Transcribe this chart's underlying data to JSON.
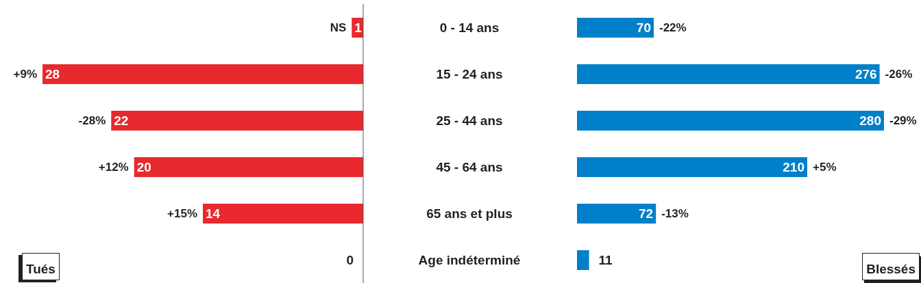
{
  "chart_data": [
    {
      "type": "bar",
      "orientation": "horizontal",
      "title": "Tués",
      "categories": [
        "0 - 14 ans",
        "15 - 24 ans",
        "25 - 44 ans",
        "45 - 64 ans",
        "65 ans et plus",
        "Age indéterminé"
      ],
      "values": [
        1,
        28,
        22,
        20,
        14,
        0
      ],
      "color": "#e8292e",
      "xlim": [
        28,
        0
      ],
      "data_labels": true,
      "tick_labels": "y",
      "annotations": [
        {
          "text": "NS",
          "x": 1,
          "y": "0 - 14 ans"
        },
        {
          "text": "+9%",
          "x": 28,
          "y": "15 - 24 ans"
        },
        {
          "text": "-28%",
          "x": 22,
          "y": "25 - 44 ans"
        },
        {
          "text": "+12%",
          "x": 20,
          "y": "45 - 64 ans"
        },
        {
          "text": "+15%",
          "x": 14,
          "y": "65 ans et plus"
        }
      ]
    },
    {
      "type": "bar",
      "orientation": "horizontal",
      "title": "Blessés",
      "categories": [
        "0 - 14 ans",
        "15 - 24 ans",
        "25 - 44 ans",
        "45 - 64 ans",
        "65 ans et plus",
        "Age indéterminé"
      ],
      "values": [
        70,
        276,
        280,
        210,
        72,
        11
      ],
      "color": "#0080c8",
      "xlim": [
        0,
        280
      ],
      "data_labels": true,
      "tick_labels": false,
      "annotations": [
        {
          "text": "-22%",
          "x": 70,
          "y": "0 - 14 ans"
        },
        {
          "text": "-26%",
          "x": 276,
          "y": "15 - 24 ans"
        },
        {
          "text": "-29%",
          "x": 280,
          "y": "25 - 44 ans"
        },
        {
          "text": "+5%",
          "x": 210,
          "y": "45 - 64 ans"
        },
        {
          "text": "-13%",
          "x": 72,
          "y": "65 ans et plus"
        }
      ]
    }
  ]
}
